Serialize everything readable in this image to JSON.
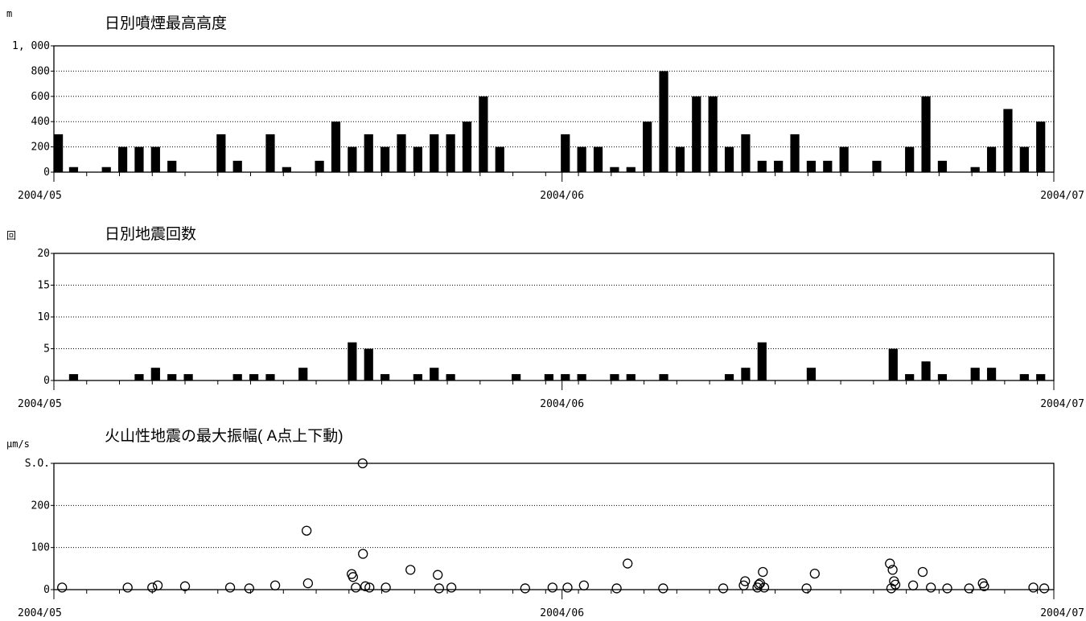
{
  "chart_data": [
    {
      "type": "bar",
      "title": "日別噴煙最高高度",
      "unit": "m",
      "y_ticks": [
        "1, 000",
        "800",
        "600",
        "400",
        "200",
        "0"
      ],
      "ylim": [
        0,
        1000
      ],
      "x_start": "2004-05-01",
      "x_end": "2004-07-01",
      "x_labels": [
        "2004/05",
        "2004/06",
        "2004/07"
      ],
      "grid": true,
      "points": [
        {
          "x": "2004-05-01",
          "y": 300
        },
        {
          "x": "2004-05-02",
          "y": 40
        },
        {
          "x": "2004-05-04",
          "y": 40
        },
        {
          "x": "2004-05-05",
          "y": 200
        },
        {
          "x": "2004-05-06",
          "y": 200
        },
        {
          "x": "2004-05-07",
          "y": 200
        },
        {
          "x": "2004-05-08",
          "y": 90
        },
        {
          "x": "2004-05-11",
          "y": 300
        },
        {
          "x": "2004-05-12",
          "y": 90
        },
        {
          "x": "2004-05-14",
          "y": 300
        },
        {
          "x": "2004-05-15",
          "y": 40
        },
        {
          "x": "2004-05-17",
          "y": 90
        },
        {
          "x": "2004-05-18",
          "y": 400
        },
        {
          "x": "2004-05-19",
          "y": 200
        },
        {
          "x": "2004-05-20",
          "y": 300
        },
        {
          "x": "2004-05-21",
          "y": 200
        },
        {
          "x": "2004-05-22",
          "y": 300
        },
        {
          "x": "2004-05-23",
          "y": 200
        },
        {
          "x": "2004-05-24",
          "y": 300
        },
        {
          "x": "2004-05-25",
          "y": 300
        },
        {
          "x": "2004-05-26",
          "y": 400
        },
        {
          "x": "2004-05-27",
          "y": 600
        },
        {
          "x": "2004-05-28",
          "y": 200
        },
        {
          "x": "2004-06-01",
          "y": 300
        },
        {
          "x": "2004-06-02",
          "y": 200
        },
        {
          "x": "2004-06-03",
          "y": 200
        },
        {
          "x": "2004-06-04",
          "y": 40
        },
        {
          "x": "2004-06-05",
          "y": 40
        },
        {
          "x": "2004-06-06",
          "y": 400
        },
        {
          "x": "2004-06-07",
          "y": 800
        },
        {
          "x": "2004-06-08",
          "y": 200
        },
        {
          "x": "2004-06-09",
          "y": 600
        },
        {
          "x": "2004-06-10",
          "y": 600
        },
        {
          "x": "2004-06-11",
          "y": 200
        },
        {
          "x": "2004-06-12",
          "y": 300
        },
        {
          "x": "2004-06-13",
          "y": 90
        },
        {
          "x": "2004-06-14",
          "y": 90
        },
        {
          "x": "2004-06-15",
          "y": 300
        },
        {
          "x": "2004-06-16",
          "y": 90
        },
        {
          "x": "2004-06-17",
          "y": 90
        },
        {
          "x": "2004-06-18",
          "y": 200
        },
        {
          "x": "2004-06-20",
          "y": 90
        },
        {
          "x": "2004-06-22",
          "y": 200
        },
        {
          "x": "2004-06-23",
          "y": 600
        },
        {
          "x": "2004-06-24",
          "y": 90
        },
        {
          "x": "2004-06-26",
          "y": 40
        },
        {
          "x": "2004-06-27",
          "y": 200
        },
        {
          "x": "2004-06-28",
          "y": 500
        },
        {
          "x": "2004-06-29",
          "y": 200
        },
        {
          "x": "2004-06-30",
          "y": 400
        }
      ]
    },
    {
      "type": "bar",
      "title": "日別地震回数",
      "unit": "回",
      "y_ticks": [
        "20",
        "15",
        "10",
        "5",
        "0"
      ],
      "ylim": [
        0,
        20
      ],
      "x_start": "2004-05-01",
      "x_end": "2004-07-01",
      "x_labels": [
        "2004/05",
        "2004/06",
        "2004/07"
      ],
      "grid": true,
      "points": [
        {
          "x": "2004-05-02",
          "y": 1
        },
        {
          "x": "2004-05-06",
          "y": 1
        },
        {
          "x": "2004-05-07",
          "y": 2
        },
        {
          "x": "2004-05-08",
          "y": 1
        },
        {
          "x": "2004-05-09",
          "y": 1
        },
        {
          "x": "2004-05-12",
          "y": 1
        },
        {
          "x": "2004-05-13",
          "y": 1
        },
        {
          "x": "2004-05-14",
          "y": 1
        },
        {
          "x": "2004-05-16",
          "y": 2
        },
        {
          "x": "2004-05-19",
          "y": 6
        },
        {
          "x": "2004-05-20",
          "y": 5
        },
        {
          "x": "2004-05-21",
          "y": 1
        },
        {
          "x": "2004-05-23",
          "y": 1
        },
        {
          "x": "2004-05-24",
          "y": 2
        },
        {
          "x": "2004-05-25",
          "y": 1
        },
        {
          "x": "2004-05-29",
          "y": 1
        },
        {
          "x": "2004-05-31",
          "y": 1
        },
        {
          "x": "2004-06-01",
          "y": 1
        },
        {
          "x": "2004-06-02",
          "y": 1
        },
        {
          "x": "2004-06-04",
          "y": 1
        },
        {
          "x": "2004-06-05",
          "y": 1
        },
        {
          "x": "2004-06-07",
          "y": 1
        },
        {
          "x": "2004-06-11",
          "y": 1
        },
        {
          "x": "2004-06-12",
          "y": 2
        },
        {
          "x": "2004-06-13",
          "y": 6
        },
        {
          "x": "2004-06-16",
          "y": 2
        },
        {
          "x": "2004-06-21",
          "y": 5
        },
        {
          "x": "2004-06-22",
          "y": 1
        },
        {
          "x": "2004-06-23",
          "y": 3
        },
        {
          "x": "2004-06-24",
          "y": 1
        },
        {
          "x": "2004-06-26",
          "y": 2
        },
        {
          "x": "2004-06-27",
          "y": 2
        },
        {
          "x": "2004-06-29",
          "y": 1
        },
        {
          "x": "2004-06-30",
          "y": 1
        }
      ]
    },
    {
      "type": "scatter",
      "title": "火山性地震の最大振幅( A点上下動)",
      "unit": "μm/s",
      "y_ticks": [
        "S.O.",
        "200",
        "100",
        "0"
      ],
      "y_tick_values": [
        300,
        200,
        100,
        0
      ],
      "ylim": [
        0,
        300
      ],
      "x_start": "2004-05-01",
      "x_end": "2004-07-01",
      "x_labels": [
        "2004/05",
        "2004/06",
        "2004/07"
      ],
      "grid": true,
      "marker": "open-circle",
      "points": [
        {
          "x": "2004-05-01 12:00",
          "y": 5
        },
        {
          "x": "2004-05-05 12:00",
          "y": 5
        },
        {
          "x": "2004-05-07 00:00",
          "y": 5
        },
        {
          "x": "2004-05-07 08:00",
          "y": 10
        },
        {
          "x": "2004-05-09 00:00",
          "y": 8
        },
        {
          "x": "2004-05-11 18:00",
          "y": 5
        },
        {
          "x": "2004-05-12 22:00",
          "y": 3
        },
        {
          "x": "2004-05-14 12:00",
          "y": 10
        },
        {
          "x": "2004-05-16 10:00",
          "y": 140
        },
        {
          "x": "2004-05-16 12:00",
          "y": 15
        },
        {
          "x": "2004-05-19 04:00",
          "y": 37
        },
        {
          "x": "2004-05-19 06:00",
          "y": 30
        },
        {
          "x": "2004-05-19 10:00",
          "y": 5
        },
        {
          "x": "2004-05-19 20:00",
          "y": 300
        },
        {
          "x": "2004-05-19 20:30",
          "y": 85
        },
        {
          "x": "2004-05-20 00:00",
          "y": 8
        },
        {
          "x": "2004-05-20 06:00",
          "y": 5
        },
        {
          "x": "2004-05-21 06:00",
          "y": 5
        },
        {
          "x": "2004-05-22 18:00",
          "y": 47
        },
        {
          "x": "2004-05-24 10:00",
          "y": 35
        },
        {
          "x": "2004-05-24 12:00",
          "y": 3
        },
        {
          "x": "2004-05-25 06:00",
          "y": 5
        },
        {
          "x": "2004-05-29 18:00",
          "y": 3
        },
        {
          "x": "2004-05-31 10:00",
          "y": 5
        },
        {
          "x": "2004-06-01 08:00",
          "y": 5
        },
        {
          "x": "2004-06-02 08:00",
          "y": 10
        },
        {
          "x": "2004-06-04 08:00",
          "y": 3
        },
        {
          "x": "2004-06-05 00:00",
          "y": 62
        },
        {
          "x": "2004-06-07 04:00",
          "y": 3
        },
        {
          "x": "2004-06-10 20:00",
          "y": 3
        },
        {
          "x": "2004-06-12 02:00",
          "y": 10
        },
        {
          "x": "2004-06-12 04:00",
          "y": 20
        },
        {
          "x": "2004-06-12 22:00",
          "y": 5
        },
        {
          "x": "2004-06-13 00:00",
          "y": 12
        },
        {
          "x": "2004-06-13 02:00",
          "y": 15
        },
        {
          "x": "2004-06-13 06:00",
          "y": 42
        },
        {
          "x": "2004-06-13 08:00",
          "y": 5
        },
        {
          "x": "2004-06-15 22:00",
          "y": 3
        },
        {
          "x": "2004-06-16 10:00",
          "y": 38
        },
        {
          "x": "2004-06-21 00:00",
          "y": 62
        },
        {
          "x": "2004-06-21 04:00",
          "y": 47
        },
        {
          "x": "2004-06-21 06:00",
          "y": 20
        },
        {
          "x": "2004-06-21 08:00",
          "y": 12
        },
        {
          "x": "2004-06-21 02:00",
          "y": 3
        },
        {
          "x": "2004-06-22 10:00",
          "y": 10
        },
        {
          "x": "2004-06-23 00:00",
          "y": 42
        },
        {
          "x": "2004-06-23 12:00",
          "y": 5
        },
        {
          "x": "2004-06-24 12:00",
          "y": 3
        },
        {
          "x": "2004-06-25 20:00",
          "y": 3
        },
        {
          "x": "2004-06-26 16:00",
          "y": 15
        },
        {
          "x": "2004-06-26 18:00",
          "y": 8
        },
        {
          "x": "2004-06-29 18:00",
          "y": 5
        },
        {
          "x": "2004-06-30 10:00",
          "y": 3
        }
      ]
    }
  ]
}
